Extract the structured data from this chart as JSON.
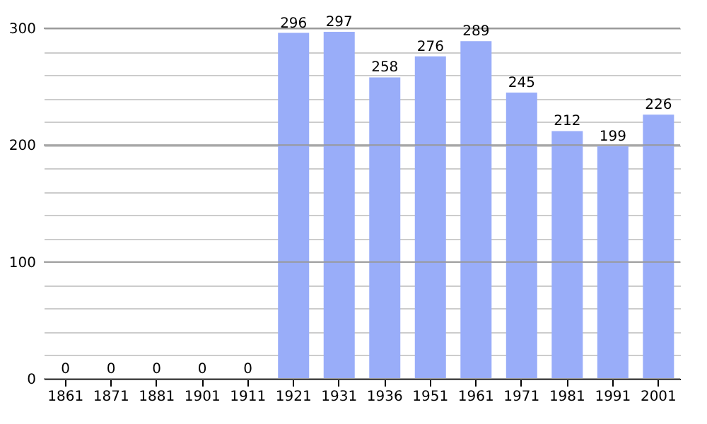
{
  "chart_data": {
    "type": "bar",
    "categories": [
      "1861",
      "1871",
      "1881",
      "1901",
      "1911",
      "1921",
      "1931",
      "1936",
      "1951",
      "1961",
      "1971",
      "1981",
      "1991",
      "2001"
    ],
    "values": [
      0,
      0,
      0,
      0,
      0,
      296,
      297,
      258,
      276,
      289,
      245,
      212,
      199,
      226
    ],
    "color": "#99adf9",
    "ylim": [
      0,
      300
    ],
    "yticks": [
      0,
      {
        "value": 20,
        "label": null
      },
      {
        "value": 40,
        "label": null
      },
      {
        "value": 60,
        "label": null
      },
      {
        "value": 80,
        "label": null
      },
      100,
      {
        "value": 120,
        "label": null
      },
      {
        "value": 140,
        "label": null
      },
      {
        "value": 160,
        "label": null
      },
      {
        "value": 180,
        "label": null
      },
      200,
      {
        "value": 220,
        "label": null
      },
      {
        "value": 240,
        "label": null
      },
      {
        "value": 260,
        "label": null
      },
      {
        "value": 280,
        "label": null
      },
      300
    ],
    "grid": "y",
    "data_labels": true
  }
}
